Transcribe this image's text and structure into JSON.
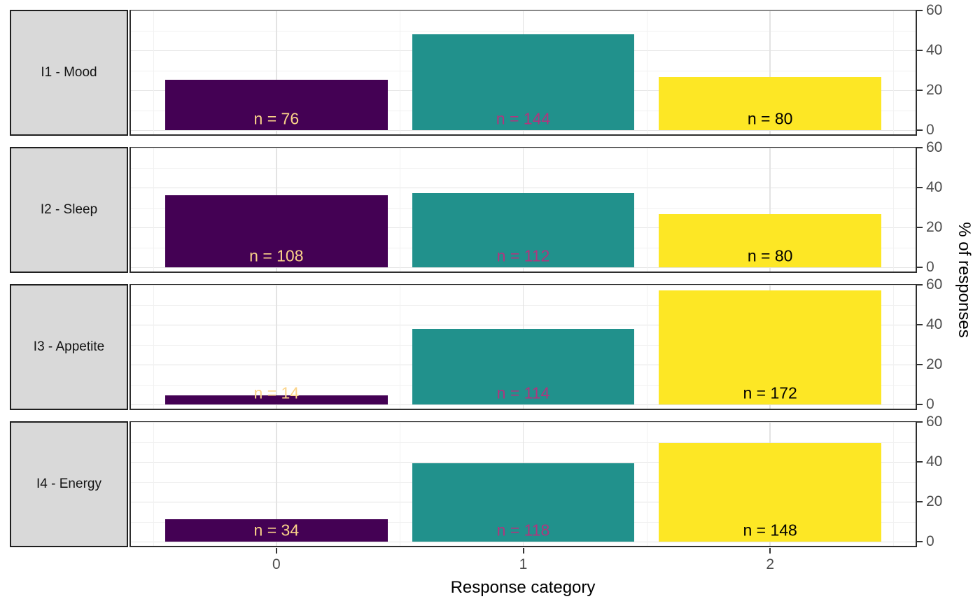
{
  "chart_data": {
    "type": "bar",
    "title": "",
    "xlabel": "Response category",
    "ylabel": "% of responses",
    "x_categories": [
      "0",
      "1",
      "2"
    ],
    "y_ticks": [
      0,
      20,
      40,
      60
    ],
    "y_minor_ticks": [
      10,
      30,
      50
    ],
    "ylim": [
      0,
      60
    ],
    "grid": true,
    "legend": "none",
    "label_prefix": "n = ",
    "facets": [
      {
        "label": "I1 - Mood",
        "counts": [
          76,
          144,
          80
        ],
        "percents": [
          25.3,
          48.0,
          26.7
        ]
      },
      {
        "label": "I2 - Sleep",
        "counts": [
          108,
          112,
          80
        ],
        "percents": [
          36.0,
          37.3,
          26.7
        ]
      },
      {
        "label": "I3 - Appetite",
        "counts": [
          14,
          114,
          172
        ],
        "percents": [
          4.7,
          38.0,
          57.3
        ]
      },
      {
        "label": "I4 - Energy",
        "counts": [
          34,
          118,
          148
        ],
        "percents": [
          11.3,
          39.3,
          49.3
        ]
      }
    ]
  },
  "colors": {
    "bars": [
      "#440154",
      "#21918C",
      "#FDE725"
    ],
    "bar_labels": [
      "#FBD489",
      "#B0357E",
      "#000000"
    ],
    "strip_bg": "#D9D9D9",
    "strip_border": "#1F1F1F",
    "panel_border": "#2E2E2E",
    "grid_major": "#E3E3E3",
    "grid_minor": "#F1F1F1",
    "axis_text": "#4D4D4D",
    "axis_title": "#000000",
    "tick": "#333333"
  }
}
